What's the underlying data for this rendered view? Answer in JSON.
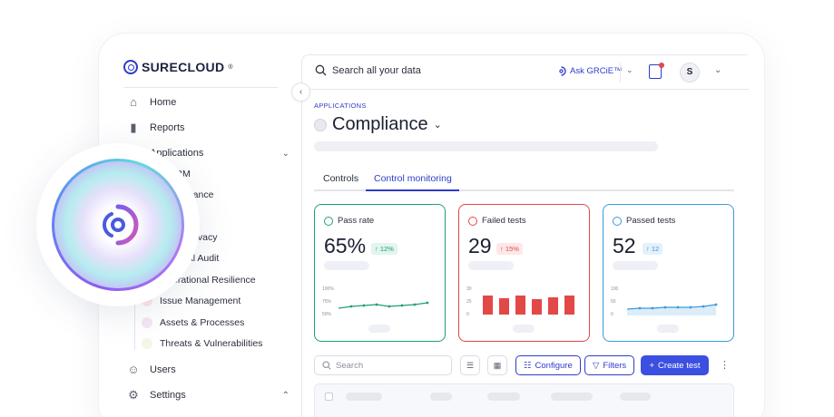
{
  "brand": {
    "name": "SURECLOUD",
    "mark": "®"
  },
  "sidebar": {
    "items": [
      {
        "label": "Home",
        "icon": "home-icon"
      },
      {
        "label": "Reports",
        "icon": "bar-chart-icon"
      },
      {
        "label": "Applications",
        "icon": "grid-icon"
      }
    ],
    "subitems": [
      {
        "label": "TPRM"
      },
      {
        "label": "Compliance"
      },
      {
        "label": "Data Privacy"
      },
      {
        "label": "Internal Audit"
      },
      {
        "label": "Operational Resilience"
      },
      {
        "label": "Issue Management"
      },
      {
        "label": "Assets & Processes"
      },
      {
        "label": "Threats & Vulnerabilities"
      }
    ],
    "users": "Users",
    "settings": "Settings"
  },
  "topbar": {
    "search_placeholder": "Search all your data",
    "ask_label": "Ask GRCiE™",
    "avatar_initial": "S"
  },
  "page": {
    "breadcrumb": "APPLICATIONS",
    "title": "Compliance"
  },
  "tabs": [
    {
      "label": "Controls",
      "active": false
    },
    {
      "label": "Control monitoring",
      "active": true
    }
  ],
  "kpis": [
    {
      "label": "Pass rate",
      "value": "65%",
      "delta": "12%",
      "color": "#1f9e7a",
      "delta_bg": "#e2f5ee",
      "ticks": [
        "100%",
        "75%",
        "50%"
      ]
    },
    {
      "label": "Failed tests",
      "value": "29",
      "delta": "15%",
      "color": "#e24848",
      "delta_bg": "#fde8e8",
      "ticks": [
        "30",
        "25",
        "0"
      ]
    },
    {
      "label": "Passed tests",
      "value": "52",
      "delta": "12",
      "color": "#3a9ad9",
      "delta_bg": "#e3f1fb",
      "ticks": [
        "100",
        "50",
        "0"
      ]
    }
  ],
  "toolbar": {
    "search_placeholder": "Search",
    "configure": "Configure",
    "filters": "Filters",
    "create": "Create test"
  },
  "colors": {
    "accent": "#2d3cc8",
    "primary_button": "#3b4fe0"
  }
}
